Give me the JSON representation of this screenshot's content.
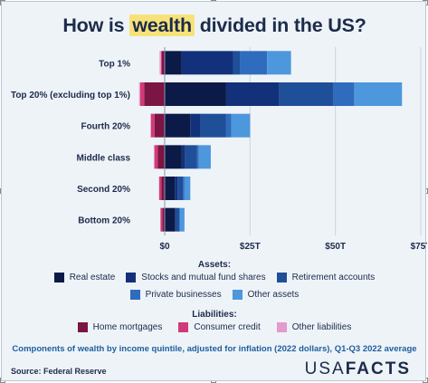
{
  "title": {
    "pre": "How is ",
    "highlight": "wealth",
    "post": " divided in the US?"
  },
  "legend": {
    "assets_title": "Assets:",
    "liabilities_title": "Liabilities:",
    "assets": [
      {
        "label": "Real estate",
        "color": "#0b1a47"
      },
      {
        "label": "Stocks and mutual fund shares",
        "color": "#13307a"
      },
      {
        "label": "Retirement accounts",
        "color": "#1f4f99"
      },
      {
        "label": "Private businesses",
        "color": "#2f6cbd"
      },
      {
        "label": "Other assets",
        "color": "#4d97dd"
      }
    ],
    "liabilities": [
      {
        "label": "Home mortgages",
        "color": "#7a1544"
      },
      {
        "label": "Consumer credit",
        "color": "#d13a78"
      },
      {
        "label": "Other liabilities",
        "color": "#e39bcc"
      }
    ]
  },
  "footnote": "Components of wealth by income quintile, adjusted for inflation (2022 dollars), Q1-Q3 2022 average",
  "source": "Source: Federal Reserve",
  "brand": {
    "part1": "USA",
    "part2": "FACTS"
  },
  "chart_data": {
    "type": "bar",
    "orientation": "horizontal",
    "stacked": true,
    "categories": [
      "Top 1%",
      "Top 20% (excluding top 1%)",
      "Fourth 20%",
      "Middle class",
      "Second 20%",
      "Bottom 20%"
    ],
    "xlim": [
      -8,
      77
    ],
    "xticks": [
      0,
      25,
      50,
      75
    ],
    "xtick_labels": [
      "$0",
      "$25T",
      "$50T",
      "$75T"
    ],
    "grid": true,
    "series": [
      {
        "name": "Real estate",
        "group": "assets",
        "color": "#0b1a47",
        "values": [
          5,
          18,
          7.5,
          5,
          3,
          3
        ]
      },
      {
        "name": "Stocks and mutual fund shares",
        "group": "assets",
        "color": "#13307a",
        "values": [
          15,
          15.5,
          3,
          1,
          0.8,
          0.3
        ]
      },
      {
        "name": "Retirement accounts",
        "group": "assets",
        "color": "#1f4f99",
        "values": [
          2,
          16,
          7.5,
          3.5,
          1.6,
          1
        ]
      },
      {
        "name": "Private businesses",
        "group": "assets",
        "color": "#2f6cbd",
        "values": [
          8,
          6,
          1.5,
          0.5,
          0.4,
          0.2
        ]
      },
      {
        "name": "Other assets",
        "group": "assets",
        "color": "#4d97dd",
        "values": [
          7,
          14,
          5.5,
          3.5,
          1.7,
          1.3
        ]
      },
      {
        "name": "Home mortgages",
        "group": "liabilities",
        "color": "#7a1544",
        "values": [
          -0.8,
          -6,
          -3,
          -2,
          -1,
          -0.7
        ]
      },
      {
        "name": "Consumer credit",
        "group": "liabilities",
        "color": "#d13a78",
        "values": [
          -0.3,
          -1.2,
          -1,
          -1,
          -0.6,
          -0.5
        ]
      },
      {
        "name": "Other liabilities",
        "group": "liabilities",
        "color": "#e39bcc",
        "values": [
          -0.4,
          -0.3,
          -0.2,
          -0.2,
          -0.1,
          -0.1
        ]
      }
    ]
  }
}
